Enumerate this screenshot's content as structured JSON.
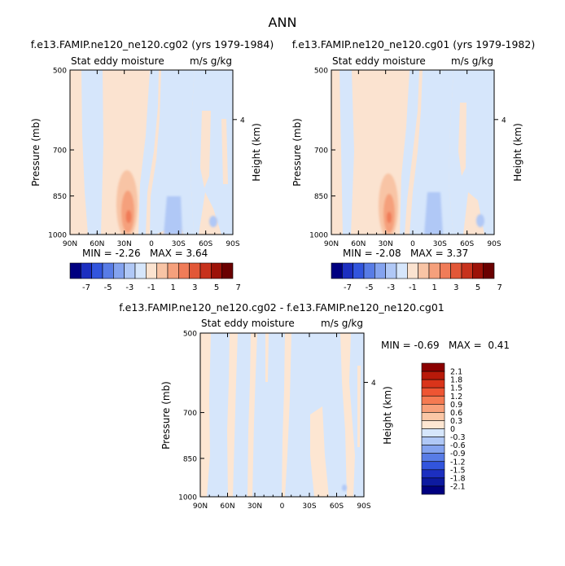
{
  "figure_title": "ANN",
  "chart_data": [
    {
      "type": "heatmap",
      "title": "f.e13.FAMIP.ne120_ne120.cg02 (yrs 1979-1984)",
      "left_label": "Stat eddy moisture",
      "right_label": "m/s g/kg",
      "ylabel": "Pressure (mb)",
      "ylabel_right": "Height (km)",
      "x_ticks": [
        "90N",
        "60N",
        "30N",
        "0",
        "30S",
        "60S",
        "90S"
      ],
      "x_values": [
        90,
        60,
        30,
        0,
        -30,
        -60,
        -90
      ],
      "y_ticks": [
        "500",
        "700",
        "850",
        "1000"
      ],
      "y_values": [
        500,
        700,
        850,
        1000
      ],
      "right_ticks": [
        "4"
      ],
      "right_tick_pressure": 616,
      "ylim": [
        500,
        1000
      ],
      "log_pressure": true,
      "min_max_text": "MIN = -2.26   MAX = 3.64",
      "min": -2.26,
      "max": 3.64,
      "colorbar_labels": [
        "-7",
        "-5",
        "-3",
        "-1",
        "1",
        "3",
        "5",
        "7"
      ],
      "colorbar_colors": [
        "#000080",
        "#1c2fc0",
        "#3255dd",
        "#587ce6",
        "#84a3ef",
        "#b0c8f6",
        "#d6e6fb",
        "#fbe3d0",
        "#f8c4a5",
        "#f5a07c",
        "#f07c58",
        "#e25737",
        "#c7321c",
        "#9c1208",
        "#6a0000"
      ]
    },
    {
      "type": "heatmap",
      "title": "f.e13.FAMIP.ne120_ne120.cg01 (yrs 1979-1982)",
      "left_label": "Stat eddy moisture",
      "right_label": "m/s g/kg",
      "ylabel": "Pressure (mb)",
      "ylabel_right": "Height (km)",
      "x_ticks": [
        "90N",
        "60N",
        "30N",
        "0",
        "30S",
        "60S",
        "90S"
      ],
      "x_values": [
        90,
        60,
        30,
        0,
        -30,
        -60,
        -90
      ],
      "y_ticks": [
        "500",
        "700",
        "850",
        "1000"
      ],
      "y_values": [
        500,
        700,
        850,
        1000
      ],
      "right_ticks": [
        "4"
      ],
      "right_tick_pressure": 616,
      "ylim": [
        500,
        1000
      ],
      "log_pressure": true,
      "min_max_text": "MIN = -2.08   MAX = 3.37",
      "min": -2.08,
      "max": 3.37,
      "colorbar_labels": [
        "-7",
        "-5",
        "-3",
        "-1",
        "1",
        "3",
        "5",
        "7"
      ],
      "colorbar_colors": [
        "#000080",
        "#1c2fc0",
        "#3255dd",
        "#587ce6",
        "#84a3ef",
        "#b0c8f6",
        "#d6e6fb",
        "#fbe3d0",
        "#f8c4a5",
        "#f5a07c",
        "#f07c58",
        "#e25737",
        "#c7321c",
        "#9c1208",
        "#6a0000"
      ]
    },
    {
      "type": "heatmap",
      "title": "f.e13.FAMIP.ne120_ne120.cg02 - f.e13.FAMIP.ne120_ne120.cg01",
      "left_label": "Stat eddy moisture",
      "right_label": "m/s g/kg",
      "ylabel": "Pressure (mb)",
      "ylabel_right": "Height (km)",
      "x_ticks": [
        "90N",
        "60N",
        "30N",
        "0",
        "30S",
        "60S",
        "90S"
      ],
      "x_values": [
        90,
        60,
        30,
        0,
        -30,
        -60,
        -90
      ],
      "y_ticks": [
        "500",
        "700",
        "850",
        "1000"
      ],
      "y_values": [
        500,
        700,
        850,
        1000
      ],
      "right_ticks": [
        "4"
      ],
      "right_tick_pressure": 616,
      "ylim": [
        500,
        1000
      ],
      "log_pressure": true,
      "min_max_text": "MIN = -0.69   MAX =  0.41",
      "min": -0.69,
      "max": 0.41,
      "colorbar_labels": [
        "2.1",
        "1.8",
        "1.5",
        "1.2",
        "0.9",
        "0.6",
        "0.3",
        "0",
        "-0.3",
        "-0.6",
        "-0.9",
        "-1.2",
        "-1.5",
        "-1.8",
        "-2.1"
      ],
      "colorbar_colors": [
        "#8b0000",
        "#b81a0a",
        "#d9341a",
        "#ee5533",
        "#f57a52",
        "#f8a07a",
        "#fbc7a6",
        "#fde6d2",
        "#d6e6fb",
        "#b0c8f6",
        "#84a3ef",
        "#587ce6",
        "#3255dd",
        "#1c2fc0",
        "#0d1aa0",
        "#000080"
      ]
    }
  ]
}
